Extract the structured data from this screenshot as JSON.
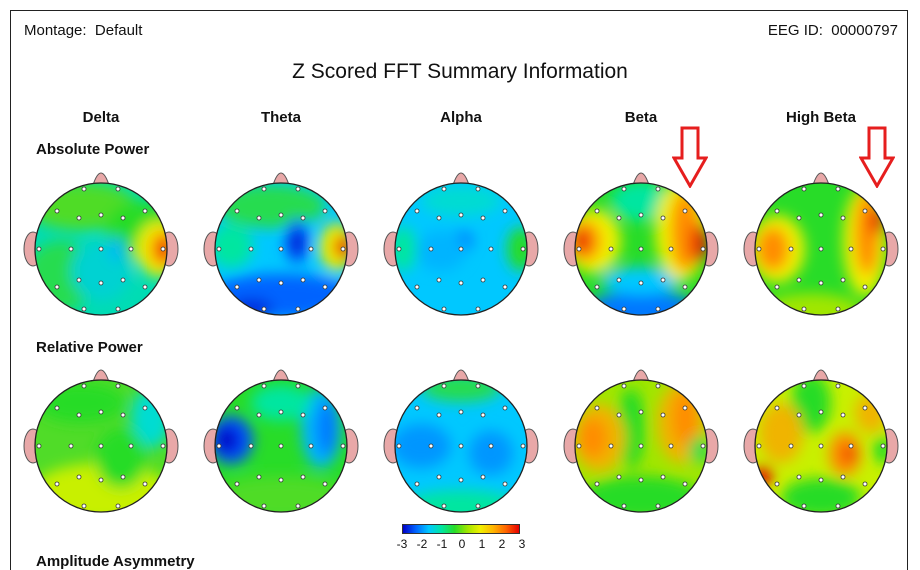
{
  "header": {
    "montage_label": "Montage:",
    "montage_value": "Default",
    "eeg_id_label": "EEG ID:",
    "eeg_id_value": "00000797",
    "title": "Z Scored FFT Summary Information"
  },
  "bands": [
    "Delta",
    "Theta",
    "Alpha",
    "Beta",
    "High Beta"
  ],
  "rows": [
    {
      "label": "Absolute Power"
    },
    {
      "label": "Relative Power"
    }
  ],
  "next_section_label": "Amplitude Asymmetry",
  "color_scale": {
    "ticks": [
      "-3",
      "-2",
      "-1",
      "0",
      "1",
      "2",
      "3"
    ]
  },
  "colors": {
    "arrow": "#e61e1e",
    "scale_low": "#0000c8",
    "scale_mid": "#28dc28",
    "scale_high": "#e60000",
    "ear": "#e8a8a8"
  },
  "annotations": [
    {
      "target": "Absolute Power / Beta",
      "icon": "down-arrow-icon"
    },
    {
      "target": "Absolute Power / High Beta",
      "icon": "down-arrow-icon"
    }
  ]
}
